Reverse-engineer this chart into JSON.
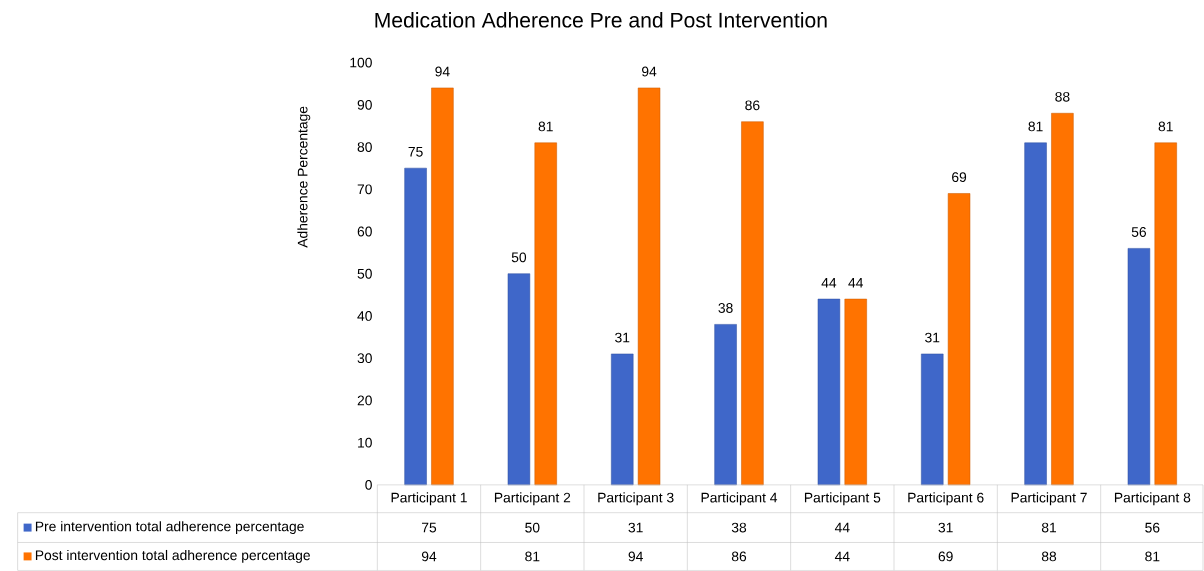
{
  "chart_data": {
    "type": "bar",
    "title": "Medication Adherence Pre and Post Intervention",
    "ylabel": "Adherence Percentage",
    "categories": [
      "Participant 1",
      "Participant 2",
      "Participant 3",
      "Participant 4",
      "Participant 5",
      "Participant 6",
      "Participant 7",
      "Participant 8"
    ],
    "series": [
      {
        "name": "Pre intervention total adherence percentage",
        "color": "#3f67c9",
        "values": [
          75,
          50,
          31,
          38,
          44,
          31,
          81,
          56
        ]
      },
      {
        "name": "Post intervention total adherence percentage",
        "color": "#ff7300",
        "values": [
          94,
          81,
          94,
          86,
          44,
          69,
          88,
          81
        ]
      }
    ],
    "annotations": [
      "75",
      "50",
      "31",
      "38",
      "44",
      "31",
      "81",
      "56",
      "94",
      "81",
      "94",
      "86",
      "44",
      "69",
      "88",
      "81"
    ],
    "ylim": [
      0,
      100
    ],
    "yticks": [
      0,
      10,
      20,
      30,
      40,
      50,
      60,
      70,
      80,
      90,
      100
    ],
    "data_labels": true,
    "legend": "bottom",
    "grid": false
  }
}
